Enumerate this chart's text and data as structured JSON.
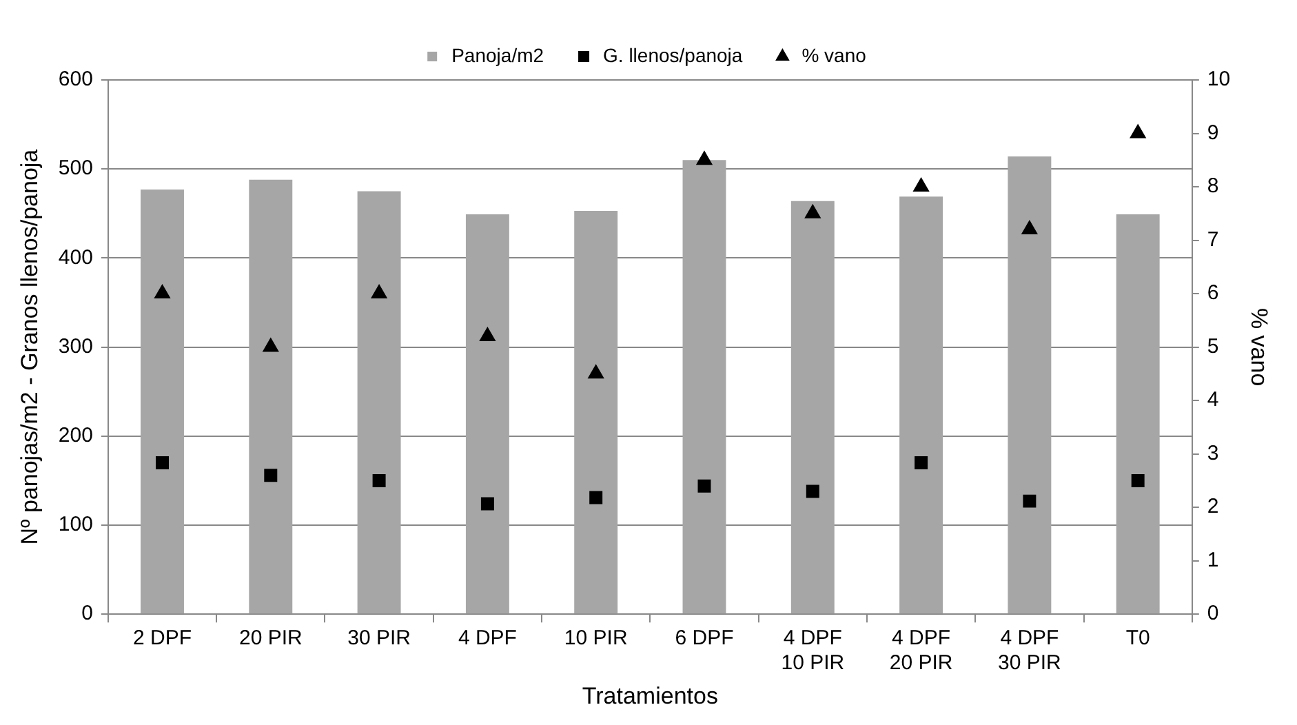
{
  "chart_data": {
    "type": "bar",
    "xlabel": "Tratamientos",
    "ylabel": "Nº panojas/m2 - Granos llenos/panoja",
    "y2label": "% vano",
    "categories": [
      "2 DPF",
      "20 PIR",
      "30 PIR",
      "4 DPF",
      "10 PIR",
      "6 DPF",
      "4 DPF\n10 PIR",
      "4 DPF\n20 PIR",
      "4 DPF\n30 PIR",
      "T0"
    ],
    "series": [
      {
        "name": "Panoja/m2",
        "color": "#a6a6a6",
        "values": [
          477,
          488,
          475,
          449,
          453,
          510,
          464,
          469,
          514,
          449
        ]
      },
      {
        "name": "G. llenos/panoja",
        "type": "scatter",
        "marker": "square",
        "color": "#000000",
        "values": [
          170,
          156,
          150,
          124,
          131,
          144,
          138,
          170,
          127,
          150
        ]
      },
      {
        "name": "% vano",
        "type": "scatter",
        "marker": "triangle",
        "axis": "y2",
        "color": "#000000",
        "values": [
          6,
          5,
          6,
          5.2,
          4.5,
          8.5,
          7.5,
          8,
          7.2,
          9
        ]
      }
    ],
    "ylim": [
      0,
      600
    ],
    "yticks": [
      0,
      100,
      200,
      300,
      400,
      500,
      600
    ],
    "y2lim": [
      0,
      10
    ],
    "y2ticks": [
      0,
      1,
      2,
      3,
      4,
      5,
      6,
      7,
      8,
      9,
      10
    ],
    "grid": "y",
    "legend": "top"
  }
}
